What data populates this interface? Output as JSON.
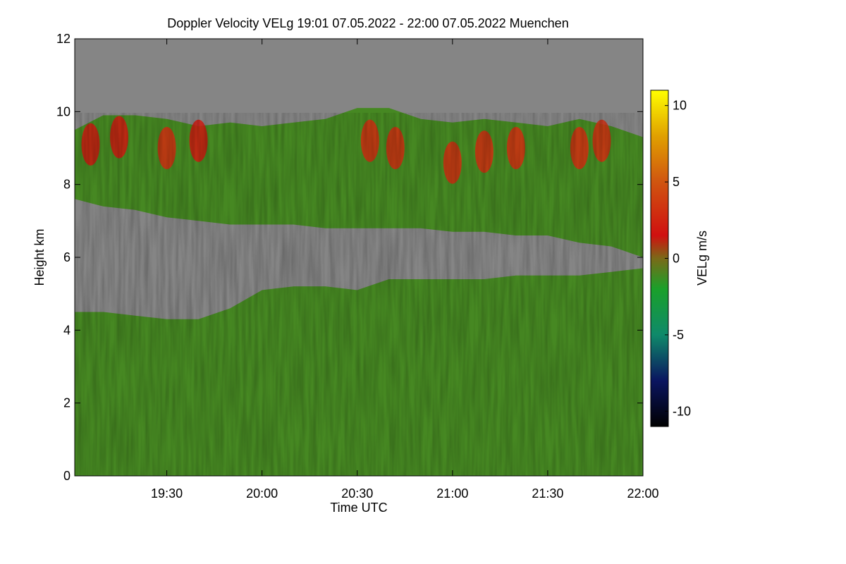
{
  "chart_data": {
    "type": "heatmap",
    "title": "Doppler Velocity VELg   19:01 07.05.2022 - 22:00 07.05.2022 Muenchen",
    "xlabel": "Time UTC",
    "ylabel": "Height km",
    "x_range_minutes": [
      1141,
      1320
    ],
    "y_range_km": [
      0,
      12
    ],
    "x_ticks": [
      {
        "label": "19:30",
        "minutes": 1170
      },
      {
        "label": "20:00",
        "minutes": 1200
      },
      {
        "label": "20:30",
        "minutes": 1230
      },
      {
        "label": "21:00",
        "minutes": 1260
      },
      {
        "label": "21:30",
        "minutes": 1290
      },
      {
        "label": "22:00",
        "minutes": 1320
      }
    ],
    "y_ticks": [
      0,
      2,
      4,
      6,
      8,
      10,
      12
    ],
    "colorbar": {
      "label": "VELg m/s",
      "range": [
        -11,
        11
      ],
      "ticks": [
        10,
        5,
        0,
        -5,
        -10
      ],
      "colormap": [
        {
          "value": -11,
          "color": "#000000"
        },
        {
          "value": -8,
          "color": "#0a1560"
        },
        {
          "value": -5,
          "color": "#0f8a6a"
        },
        {
          "value": -2,
          "color": "#1aa02a"
        },
        {
          "value": 0,
          "color": "#7a6a18"
        },
        {
          "value": 1.5,
          "color": "#d01010"
        },
        {
          "value": 5,
          "color": "#d05510"
        },
        {
          "value": 8,
          "color": "#e0a000"
        },
        {
          "value": 11,
          "color": "#ffff00"
        }
      ]
    },
    "no_data_color": "#858585",
    "layers": [
      {
        "name": "upper-cloud-layer",
        "velocity": -1.5,
        "time": [
          1141,
          1150,
          1160,
          1170,
          1180,
          1190,
          1200,
          1210,
          1220,
          1230,
          1240,
          1250,
          1260,
          1270,
          1280,
          1290,
          1300,
          1310,
          1320
        ],
        "top_km": [
          9.5,
          9.9,
          9.9,
          9.8,
          9.6,
          9.7,
          9.6,
          9.7,
          9.8,
          10.1,
          10.1,
          9.8,
          9.7,
          9.8,
          9.7,
          9.6,
          9.8,
          9.6,
          9.3
        ],
        "base_km": [
          7.6,
          7.4,
          7.3,
          7.1,
          7.0,
          6.9,
          6.9,
          6.9,
          6.8,
          6.8,
          6.8,
          6.8,
          6.7,
          6.7,
          6.6,
          6.6,
          6.4,
          6.3,
          6.0
        ]
      },
      {
        "name": "lower-cloud-layer",
        "velocity": -1.5,
        "time": [
          1141,
          1150,
          1160,
          1170,
          1180,
          1190,
          1200,
          1210,
          1220,
          1230,
          1240,
          1250,
          1260,
          1270,
          1280,
          1290,
          1300,
          1310,
          1320
        ],
        "top_km": [
          4.5,
          4.5,
          4.4,
          4.3,
          4.3,
          4.6,
          5.1,
          5.2,
          5.2,
          5.1,
          5.4,
          5.4,
          5.4,
          5.4,
          5.5,
          5.5,
          5.5,
          5.6,
          5.7
        ],
        "base_km": [
          0,
          0,
          0,
          0,
          0,
          0,
          0,
          0,
          0,
          0,
          0,
          0,
          0,
          0,
          0,
          0,
          0,
          0,
          0
        ]
      }
    ],
    "updraft_regions": [
      {
        "time": 1146,
        "height_km": 9.1,
        "velocity": 2
      },
      {
        "time": 1155,
        "height_km": 9.3,
        "velocity": 2
      },
      {
        "time": 1170,
        "height_km": 9.0,
        "velocity": 3
      },
      {
        "time": 1180,
        "height_km": 9.2,
        "velocity": 2
      },
      {
        "time": 1234,
        "height_km": 9.2,
        "velocity": 3
      },
      {
        "time": 1242,
        "height_km": 9.0,
        "velocity": 3
      },
      {
        "time": 1260,
        "height_km": 8.6,
        "velocity": 3
      },
      {
        "time": 1270,
        "height_km": 8.9,
        "velocity": 3
      },
      {
        "time": 1280,
        "height_km": 9.0,
        "velocity": 3
      },
      {
        "time": 1300,
        "height_km": 9.0,
        "velocity": 3
      },
      {
        "time": 1307,
        "height_km": 9.2,
        "velocity": 3
      }
    ]
  }
}
